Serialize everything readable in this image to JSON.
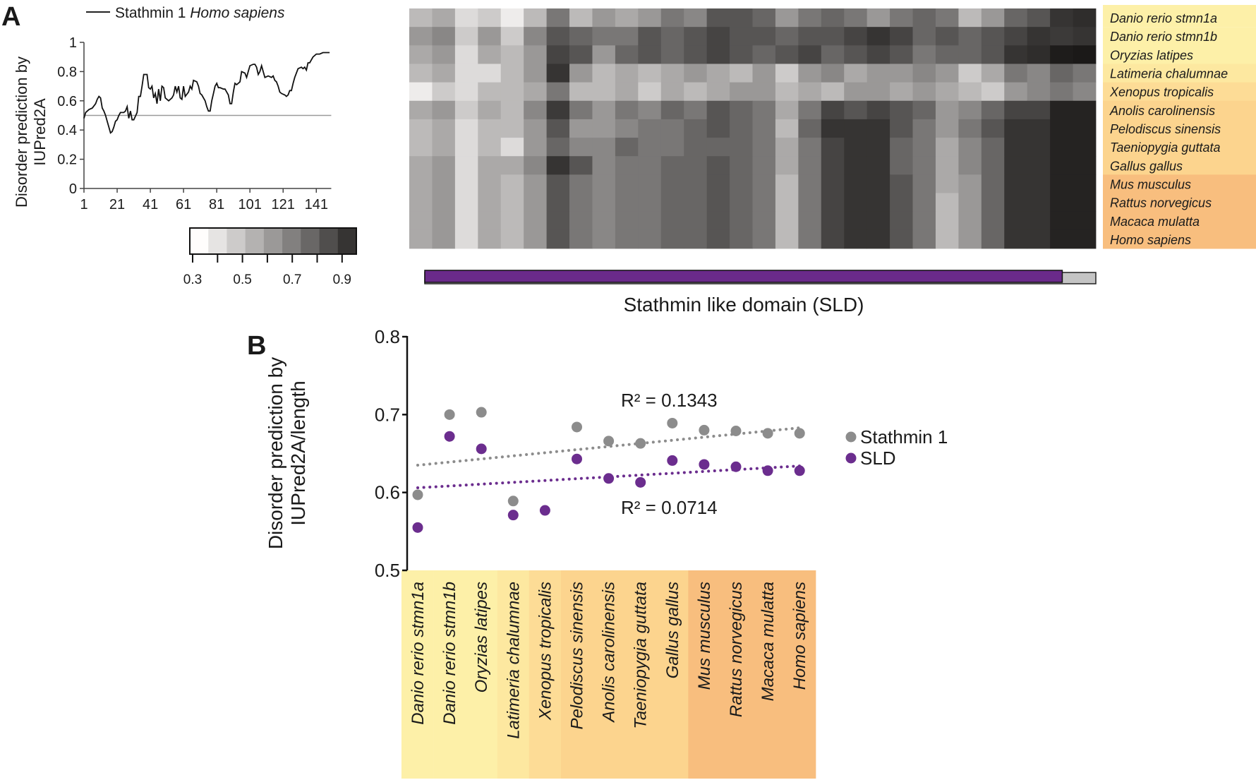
{
  "panel_a": {
    "label": "A",
    "line_chart": {
      "type": "line",
      "legend": {
        "prefix": "Stathmin 1 ",
        "species": "Homo sapiens"
      },
      "ylabel": [
        "Disorder prediction by",
        "IUPred2A"
      ],
      "ylim": [
        0,
        1
      ],
      "yticks": [
        "0",
        "0.2",
        "0.4",
        "0.6",
        "0.8",
        "1"
      ],
      "xticks": [
        "1",
        "21",
        "41",
        "61",
        "81",
        "101",
        "121",
        "141"
      ],
      "xlim": [
        1,
        149
      ],
      "threshold": 0.5,
      "x": [
        1,
        2,
        4,
        6,
        8,
        9,
        10,
        11,
        12,
        13,
        14,
        15,
        16,
        17,
        18,
        19,
        20,
        21,
        22,
        23,
        25,
        26,
        27,
        28,
        29,
        30,
        31,
        33,
        34,
        35,
        36,
        37,
        39,
        40,
        41,
        42,
        43,
        44,
        45,
        46,
        47,
        48,
        49,
        50,
        52,
        54,
        55,
        56,
        57,
        58,
        59,
        60,
        61,
        62,
        64,
        65,
        66,
        67,
        69,
        70,
        71,
        72,
        74,
        75,
        76,
        77,
        78,
        79,
        80,
        81,
        82,
        83,
        85,
        86,
        87,
        88,
        89,
        90,
        91,
        92,
        93,
        95,
        96,
        98,
        99,
        100,
        101,
        103,
        104,
        105,
        106,
        107,
        108,
        109,
        110,
        112,
        114,
        115,
        116,
        117,
        118,
        119,
        120,
        122,
        123,
        124,
        125,
        126,
        127,
        128,
        130,
        132,
        133,
        134,
        135,
        136,
        137,
        139,
        141,
        143,
        145,
        149
      ],
      "y": [
        0.48,
        0.52,
        0.54,
        0.55,
        0.58,
        0.61,
        0.63,
        0.62,
        0.55,
        0.53,
        0.5,
        0.46,
        0.42,
        0.38,
        0.39,
        0.42,
        0.46,
        0.47,
        0.5,
        0.52,
        0.52,
        0.53,
        0.56,
        0.48,
        0.53,
        0.47,
        0.47,
        0.52,
        0.63,
        0.63,
        0.7,
        0.78,
        0.78,
        0.69,
        0.68,
        0.7,
        0.62,
        0.65,
        0.58,
        0.68,
        0.6,
        0.7,
        0.69,
        0.62,
        0.6,
        0.62,
        0.64,
        0.7,
        0.66,
        0.7,
        0.62,
        0.61,
        0.7,
        0.63,
        0.66,
        0.7,
        0.68,
        0.74,
        0.73,
        0.7,
        0.65,
        0.64,
        0.6,
        0.56,
        0.53,
        0.53,
        0.6,
        0.65,
        0.7,
        0.72,
        0.69,
        0.69,
        0.68,
        0.68,
        0.66,
        0.64,
        0.58,
        0.58,
        0.66,
        0.72,
        0.71,
        0.73,
        0.8,
        0.79,
        0.76,
        0.8,
        0.84,
        0.85,
        0.85,
        0.83,
        0.78,
        0.8,
        0.84,
        0.8,
        0.76,
        0.77,
        0.76,
        0.77,
        0.74,
        0.73,
        0.7,
        0.66,
        0.65,
        0.64,
        0.63,
        0.64,
        0.67,
        0.67,
        0.72,
        0.76,
        0.82,
        0.83,
        0.82,
        0.83,
        0.81,
        0.86,
        0.86,
        0.9,
        0.92,
        0.92,
        0.93,
        0.93
      ]
    },
    "colorbar": {
      "ticks": [
        "0.3",
        "0.5",
        "0.7",
        "0.9"
      ],
      "steps": [
        0.3,
        0.38,
        0.46,
        0.54,
        0.62,
        0.7,
        0.78,
        0.86,
        0.94
      ]
    },
    "heatmap": {
      "type": "heatmap",
      "range": [
        0.3,
        1.0
      ],
      "rows": [
        "Danio rerio stmn1a",
        "Danio rerio stmn1b",
        "Oryzias latipes",
        "Latimeria chalumnae",
        "Xenopus tropicalis",
        "Anolis carolinensis",
        "Pelodiscus sinensis",
        "Taeniopygia guttata",
        "Gallus gallus",
        "Mus musculus",
        "Rattus norvegicus",
        "Macaca mulatta",
        "Homo sapiens"
      ],
      "row_groups": [
        "#fdf0a8",
        "#fdf0a8",
        "#fdf0a8",
        "#fde8a0",
        "#fddc96",
        "#fcd48e",
        "#fcd48e",
        "#fcd48e",
        "#fcd48e",
        "#f8be7e",
        "#f8be7e",
        "#f8be7e",
        "#f8be7e"
      ],
      "values": [
        [
          0.5,
          0.55,
          0.4,
          0.45,
          0.35,
          0.5,
          0.7,
          0.5,
          0.6,
          0.55,
          0.6,
          0.7,
          0.65,
          0.8,
          0.8,
          0.75,
          0.6,
          0.7,
          0.75,
          0.7,
          0.6,
          0.7,
          0.75,
          0.7,
          0.5,
          0.6,
          0.75,
          0.8,
          0.9,
          0.92
        ],
        [
          0.6,
          0.65,
          0.45,
          0.6,
          0.45,
          0.65,
          0.8,
          0.75,
          0.7,
          0.7,
          0.8,
          0.75,
          0.8,
          0.85,
          0.8,
          0.8,
          0.75,
          0.8,
          0.8,
          0.85,
          0.9,
          0.85,
          0.75,
          0.8,
          0.75,
          0.8,
          0.85,
          0.9,
          0.88,
          0.9
        ],
        [
          0.55,
          0.6,
          0.4,
          0.55,
          0.5,
          0.6,
          0.85,
          0.8,
          0.6,
          0.75,
          0.8,
          0.75,
          0.8,
          0.85,
          0.8,
          0.75,
          0.8,
          0.85,
          0.75,
          0.8,
          0.85,
          0.8,
          0.7,
          0.75,
          0.75,
          0.8,
          0.9,
          0.92,
          0.97,
          0.98
        ],
        [
          0.5,
          0.55,
          0.4,
          0.4,
          0.5,
          0.6,
          0.9,
          0.6,
          0.5,
          0.55,
          0.5,
          0.55,
          0.6,
          0.55,
          0.5,
          0.6,
          0.45,
          0.6,
          0.65,
          0.55,
          0.6,
          0.6,
          0.65,
          0.6,
          0.45,
          0.55,
          0.7,
          0.65,
          0.75,
          0.7
        ],
        [
          0.35,
          0.45,
          0.4,
          0.5,
          0.5,
          0.55,
          0.7,
          0.5,
          0.5,
          0.55,
          0.45,
          0.55,
          0.5,
          0.55,
          0.6,
          0.6,
          0.5,
          0.55,
          0.5,
          0.6,
          0.6,
          0.55,
          0.6,
          0.55,
          0.5,
          0.45,
          0.6,
          0.65,
          0.7,
          0.65
        ],
        [
          0.55,
          0.6,
          0.45,
          0.55,
          0.5,
          0.65,
          0.88,
          0.7,
          0.6,
          0.7,
          0.65,
          0.75,
          0.7,
          0.8,
          0.75,
          0.7,
          0.55,
          0.7,
          0.85,
          0.8,
          0.85,
          0.8,
          0.75,
          0.6,
          0.65,
          0.75,
          0.85,
          0.85,
          0.95,
          0.95
        ],
        [
          0.5,
          0.55,
          0.4,
          0.5,
          0.5,
          0.6,
          0.8,
          0.6,
          0.6,
          0.65,
          0.7,
          0.7,
          0.75,
          0.8,
          0.75,
          0.7,
          0.5,
          0.75,
          0.9,
          0.9,
          0.9,
          0.8,
          0.7,
          0.6,
          0.7,
          0.8,
          0.9,
          0.9,
          0.95,
          0.95
        ],
        [
          0.5,
          0.55,
          0.4,
          0.5,
          0.4,
          0.6,
          0.75,
          0.65,
          0.65,
          0.75,
          0.7,
          0.7,
          0.75,
          0.75,
          0.75,
          0.7,
          0.55,
          0.7,
          0.85,
          0.9,
          0.9,
          0.75,
          0.7,
          0.55,
          0.65,
          0.75,
          0.9,
          0.9,
          0.95,
          0.95
        ],
        [
          0.55,
          0.6,
          0.4,
          0.55,
          0.55,
          0.65,
          0.9,
          0.8,
          0.65,
          0.7,
          0.7,
          0.75,
          0.75,
          0.8,
          0.75,
          0.7,
          0.55,
          0.7,
          0.85,
          0.9,
          0.9,
          0.75,
          0.7,
          0.55,
          0.65,
          0.75,
          0.9,
          0.9,
          0.95,
          0.95
        ],
        [
          0.55,
          0.6,
          0.4,
          0.55,
          0.5,
          0.6,
          0.8,
          0.7,
          0.65,
          0.7,
          0.7,
          0.75,
          0.75,
          0.8,
          0.75,
          0.7,
          0.5,
          0.7,
          0.85,
          0.9,
          0.9,
          0.8,
          0.7,
          0.55,
          0.6,
          0.75,
          0.9,
          0.9,
          0.95,
          0.95
        ],
        [
          0.55,
          0.6,
          0.4,
          0.55,
          0.5,
          0.6,
          0.8,
          0.7,
          0.65,
          0.7,
          0.7,
          0.75,
          0.75,
          0.8,
          0.75,
          0.7,
          0.5,
          0.7,
          0.85,
          0.9,
          0.9,
          0.8,
          0.7,
          0.5,
          0.6,
          0.75,
          0.9,
          0.9,
          0.95,
          0.95
        ],
        [
          0.55,
          0.6,
          0.4,
          0.55,
          0.5,
          0.6,
          0.8,
          0.7,
          0.65,
          0.7,
          0.7,
          0.75,
          0.75,
          0.8,
          0.75,
          0.7,
          0.5,
          0.7,
          0.85,
          0.9,
          0.9,
          0.8,
          0.7,
          0.5,
          0.6,
          0.75,
          0.9,
          0.9,
          0.95,
          0.95
        ],
        [
          0.55,
          0.6,
          0.4,
          0.55,
          0.5,
          0.6,
          0.8,
          0.7,
          0.65,
          0.7,
          0.7,
          0.75,
          0.75,
          0.8,
          0.75,
          0.7,
          0.5,
          0.7,
          0.85,
          0.9,
          0.9,
          0.8,
          0.7,
          0.5,
          0.6,
          0.75,
          0.9,
          0.9,
          0.95,
          0.95
        ]
      ]
    },
    "domain_bar": {
      "label": "Stathmin like domain (SLD)",
      "sld_fraction": 0.95,
      "color": "#6a2a8a"
    }
  },
  "panel_b": {
    "label": "B",
    "chart": {
      "type": "scatter",
      "ylabel": [
        "Disorder prediction by",
        "IUPred2A/length"
      ],
      "ylim": [
        0.5,
        0.8
      ],
      "yticks": [
        "0.5",
        "0.6",
        "0.7",
        "0.8"
      ],
      "categories": [
        "Danio rerio stmn1a",
        "Danio rerio stmn1b",
        "Oryzias latipes",
        "Latimeria chalumnae",
        "Xenopus tropicalis",
        "Pelodiscus sinensis",
        "Anolis carolinensis",
        "Taeniopygia guttata",
        "Gallus gallus",
        "Mus musculus",
        "Rattus norvegicus",
        "Macaca mulatta",
        "Homo sapiens"
      ],
      "category_colors": [
        "#fdf0a8",
        "#fdf0a8",
        "#fdf0a8",
        "#fde8a0",
        "#fddc96",
        "#fcd48e",
        "#fcd48e",
        "#fcd48e",
        "#fcd48e",
        "#f8be7e",
        "#f8be7e",
        "#f8be7e",
        "#f8be7e"
      ],
      "series": [
        {
          "name": "Stathmin 1",
          "color": "#8c8c8c",
          "values": [
            0.597,
            0.7,
            0.703,
            0.589,
            null,
            0.684,
            0.666,
            0.663,
            0.689,
            0.68,
            0.679,
            0.676,
            0.676
          ],
          "trend": [
            0.635,
            0.683
          ],
          "r2_label": "R² = 0.1343"
        },
        {
          "name": "SLD",
          "color": "#6b2d8e",
          "values": [
            0.555,
            0.672,
            0.656,
            0.571,
            0.577,
            0.643,
            0.618,
            0.613,
            0.641,
            0.636,
            0.633,
            0.628,
            0.628
          ],
          "trend": [
            0.606,
            0.634
          ],
          "r2_label": "R² = 0.0714"
        }
      ],
      "legend": "right"
    }
  }
}
